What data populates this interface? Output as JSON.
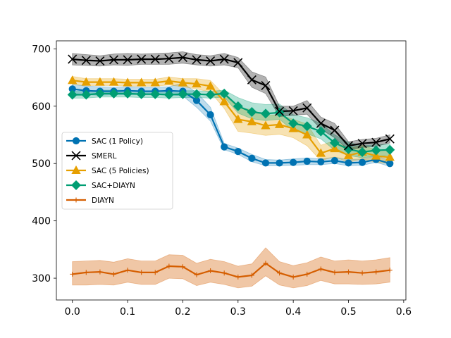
{
  "chart_data": {
    "type": "line",
    "title": "",
    "xlabel": "",
    "ylabel": "",
    "xlim": [
      -0.029,
      0.604
    ],
    "ylim": [
      262,
      714
    ],
    "xticks": [
      0.0,
      0.1,
      0.2,
      0.3,
      0.4,
      0.5,
      0.6
    ],
    "xtick_labels": [
      "0.0",
      "0.1",
      "0.2",
      "0.3",
      "0.4",
      "0.5",
      "0.6"
    ],
    "yticks": [
      300,
      400,
      500,
      600,
      700
    ],
    "ytick_labels": [
      "300",
      "400",
      "500",
      "600",
      "700"
    ],
    "grid": false,
    "legend_position": "center-left",
    "x": [
      0.0,
      0.025,
      0.05,
      0.075,
      0.1,
      0.125,
      0.15,
      0.175,
      0.2,
      0.225,
      0.25,
      0.275,
      0.3,
      0.325,
      0.35,
      0.375,
      0.4,
      0.425,
      0.45,
      0.475,
      0.5,
      0.525,
      0.55,
      0.575
    ],
    "series": [
      {
        "name": "SAC (1 Policy)",
        "color": "#0072b2",
        "marker": "circle",
        "values": [
          630,
          627,
          626,
          626,
          627,
          626,
          626,
          627,
          626,
          610,
          585,
          529,
          521,
          509,
          501,
          501,
          502,
          504,
          503,
          505,
          501,
          502,
          507,
          500
        ],
        "lower": [
          622,
          620,
          619,
          620,
          620,
          620,
          620,
          620,
          618,
          598,
          574,
          524,
          516,
          503,
          496,
          496,
          497,
          498,
          498,
          500,
          496,
          497,
          502,
          495
        ],
        "upper": [
          638,
          635,
          634,
          633,
          634,
          633,
          633,
          634,
          640,
          624,
          598,
          535,
          527,
          516,
          507,
          506,
          508,
          510,
          508,
          511,
          507,
          508,
          513,
          506
        ]
      },
      {
        "name": "SMERL",
        "color": "#000000",
        "marker": "x",
        "values": [
          682,
          680,
          679,
          681,
          681,
          682,
          682,
          683,
          685,
          681,
          679,
          682,
          676,
          646,
          636,
          591,
          592,
          597,
          570,
          558,
          531,
          535,
          537,
          543
        ],
        "lower": [
          672,
          671,
          670,
          672,
          671,
          673,
          673,
          673,
          675,
          672,
          670,
          672,
          667,
          633,
          622,
          582,
          584,
          586,
          560,
          545,
          524,
          528,
          530,
          536
        ],
        "upper": [
          692,
          690,
          688,
          691,
          692,
          691,
          692,
          693,
          695,
          690,
          688,
          692,
          685,
          660,
          651,
          600,
          600,
          610,
          581,
          570,
          538,
          542,
          544,
          550
        ]
      },
      {
        "name": "SAC (5 Policies)",
        "color": "#e69f00",
        "marker": "triangle",
        "values": [
          645,
          642,
          642,
          642,
          641,
          641,
          641,
          644,
          641,
          639,
          635,
          608,
          577,
          573,
          566,
          568,
          561,
          550,
          518,
          526,
          514,
          520,
          513,
          511
        ],
        "lower": [
          638,
          636,
          636,
          636,
          635,
          635,
          635,
          637,
          634,
          630,
          625,
          596,
          556,
          553,
          549,
          551,
          545,
          531,
          505,
          512,
          502,
          508,
          502,
          500
        ],
        "upper": [
          652,
          648,
          648,
          648,
          647,
          647,
          647,
          651,
          648,
          648,
          645,
          620,
          598,
          594,
          584,
          585,
          577,
          569,
          532,
          540,
          526,
          532,
          524,
          522
        ]
      },
      {
        "name": "SAC+DIAYN",
        "color": "#009e73",
        "marker": "diamond",
        "values": [
          620,
          620,
          622,
          622,
          622,
          621,
          621,
          620,
          621,
          621,
          620,
          622,
          600,
          590,
          587,
          589,
          570,
          565,
          556,
          536,
          525,
          520,
          523,
          524
        ],
        "lower": [
          614,
          614,
          616,
          616,
          616,
          615,
          615,
          614,
          615,
          615,
          614,
          616,
          588,
          578,
          575,
          577,
          557,
          552,
          543,
          523,
          514,
          510,
          513,
          514
        ],
        "upper": [
          626,
          626,
          628,
          628,
          628,
          627,
          627,
          626,
          627,
          627,
          626,
          628,
          615,
          606,
          603,
          604,
          585,
          580,
          570,
          550,
          537,
          531,
          533,
          534
        ]
      },
      {
        "name": "DIAYN",
        "color": "#d55e00",
        "marker": "plus",
        "values": [
          307,
          310,
          311,
          307,
          314,
          310,
          310,
          321,
          320,
          306,
          313,
          309,
          302,
          305,
          326,
          309,
          302,
          307,
          316,
          310,
          311,
          309,
          311,
          314
        ],
        "lower": [
          288,
          288,
          289,
          288,
          293,
          289,
          289,
          300,
          299,
          287,
          293,
          289,
          283,
          286,
          304,
          288,
          283,
          287,
          296,
          290,
          290,
          289,
          290,
          293
        ],
        "upper": [
          329,
          330,
          331,
          328,
          334,
          330,
          330,
          341,
          340,
          326,
          333,
          329,
          321,
          325,
          353,
          329,
          322,
          327,
          337,
          330,
          332,
          330,
          332,
          336
        ]
      }
    ]
  }
}
